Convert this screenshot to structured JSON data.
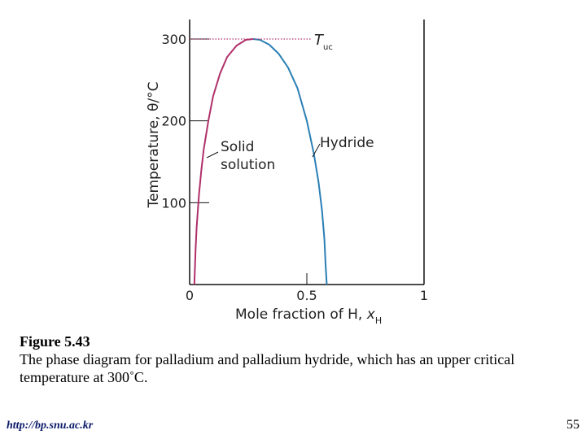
{
  "chart_data": {
    "type": "line",
    "xlabel": "Mole fraction of H, ",
    "xlabel_var": "x",
    "xlabel_sub": "H",
    "ylabel": "Temperature, θ/°C",
    "xlim": [
      0,
      1
    ],
    "ylim": [
      0,
      330
    ],
    "x_ticks": [
      "0",
      "0.5",
      "1"
    ],
    "y_ticks": [
      "100",
      "200",
      "300"
    ],
    "grid": false,
    "critical_label": "T",
    "critical_sub": "uc",
    "critical_temperature": 300,
    "annotations": {
      "solid_line1": "Solid",
      "solid_line2": "solution",
      "hydride": "Hydride"
    },
    "series": [
      {
        "name": "Solid solution",
        "color": "#b0306a",
        "x": [
          0.02,
          0.025,
          0.03,
          0.04,
          0.05,
          0.06,
          0.08,
          0.1,
          0.13,
          0.16,
          0.2,
          0.24,
          0.27
        ],
        "y": [
          0,
          40,
          70,
          110,
          140,
          165,
          200,
          230,
          258,
          278,
          292,
          299,
          300
        ]
      },
      {
        "name": "Hydride",
        "color": "#2a7fb5",
        "x": [
          0.27,
          0.3,
          0.34,
          0.38,
          0.42,
          0.46,
          0.5,
          0.53,
          0.55,
          0.565,
          0.575,
          0.58,
          0.585
        ],
        "y": [
          300,
          299,
          293,
          282,
          265,
          240,
          200,
          160,
          125,
          90,
          55,
          25,
          0
        ]
      }
    ]
  },
  "caption": {
    "label": "Figure 5.43",
    "text": "The phase diagram for palladium and palladium hydride, which has an upper critical temperature at 300˚C."
  },
  "footer": {
    "url": "http://bp.snu.ac.kr",
    "page": "55"
  }
}
